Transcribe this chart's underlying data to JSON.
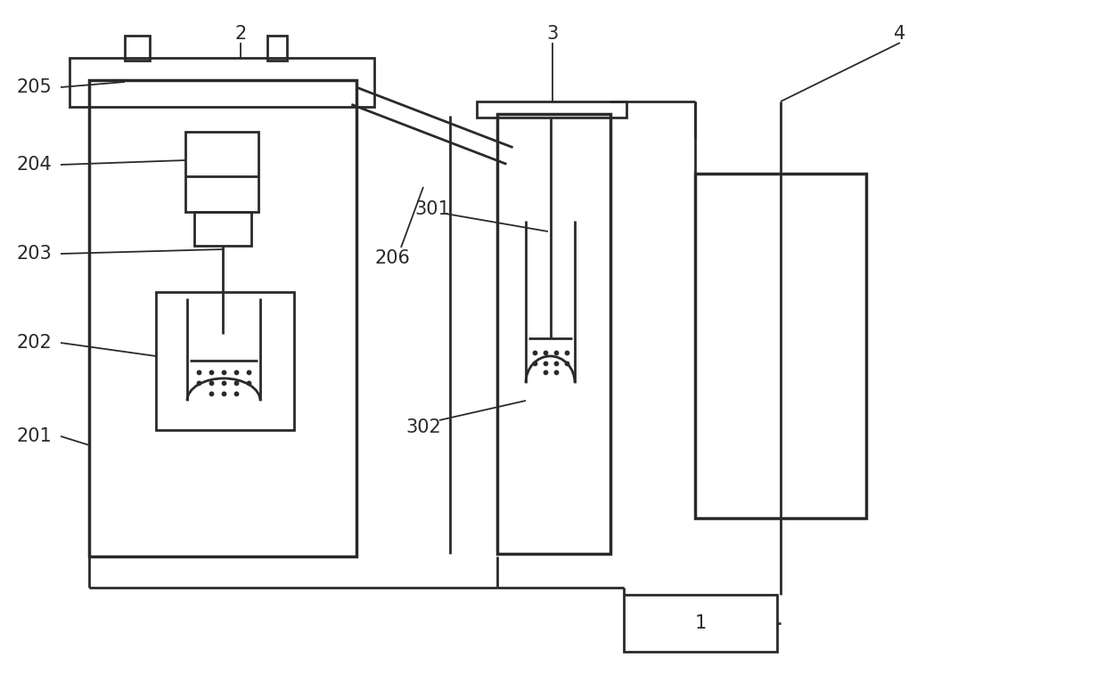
{
  "bg_color": "#ffffff",
  "lc": "#2a2a2a",
  "lw": 2.0,
  "tlw": 2.5,
  "fs": 15,
  "fig_w": 12.4,
  "fig_h": 7.84,
  "dpi": 100
}
